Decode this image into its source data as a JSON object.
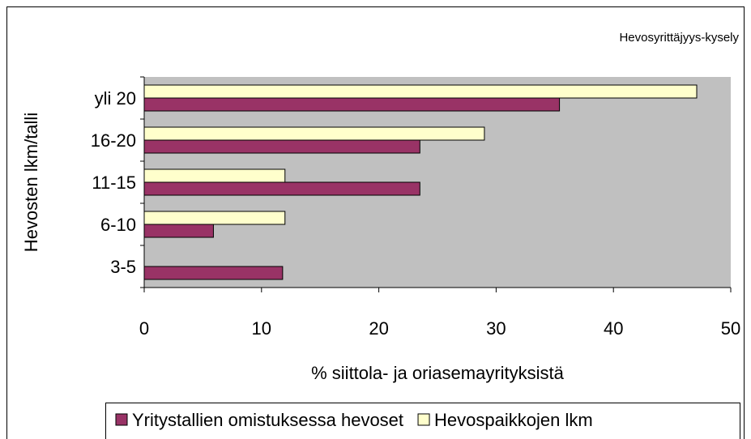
{
  "chart_data": {
    "type": "hbar",
    "subtitle": "Hevosyrittäjyys-kysely",
    "x_label": "% siittola- ja oriasemayrityksistä",
    "y_label": "Hevosten lkm/talli",
    "categories": [
      "3-5",
      "6-10",
      "11-15",
      "16-20",
      "yli 20"
    ],
    "series": [
      {
        "name": "Yritystallien omistuksessa hevoset",
        "color": "#993366",
        "values": [
          11.8,
          5.9,
          23.5,
          23.5,
          35.4
        ]
      },
      {
        "name": "Hevospaikkojen lkm",
        "color": "#ffffcc",
        "values": [
          0,
          12,
          12,
          29,
          47.1
        ]
      }
    ],
    "xlim": [
      0,
      50
    ],
    "xticks": [
      0,
      10,
      20,
      30,
      40,
      50
    ],
    "plot_background": "#c0c0c0"
  }
}
